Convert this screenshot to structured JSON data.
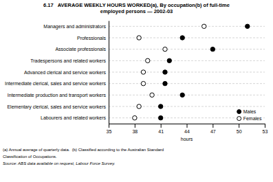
{
  "chart_data": {
    "type": "dot",
    "orientation": "horizontal",
    "title": [
      "6.17   AVERAGE WEEKLY HOURS WORKED(a), By occupation(b) of full-time",
      "employed persons — 2002-03"
    ],
    "categories": [
      "Managers and administrators",
      "Professionals",
      "Associate professionals",
      "Tradespersons and related workers",
      "Advanced clerical and service workers",
      "Intermediate clerical, sales and service workers",
      "Intermediate production and transport workers",
      "Elementary clerical, sales and service workers",
      "Labourers and related workers"
    ],
    "series": [
      {
        "name": "Males",
        "color": "#000000",
        "marker": "circle",
        "values": [
          51.0,
          43.5,
          47.0,
          42.0,
          41.5,
          41.5,
          43.5,
          41.0,
          41.0
        ]
      },
      {
        "name": "Females",
        "color": "#000000",
        "marker": "open-circle",
        "values": [
          46.0,
          38.5,
          41.5,
          39.5,
          39.0,
          39.0,
          40.0,
          38.5,
          38.0
        ]
      }
    ],
    "xlabel": "hours",
    "xlim": [
      35,
      53
    ],
    "xticks": [
      35,
      38,
      41,
      44,
      47,
      50,
      53
    ],
    "grid": true,
    "legend": "lower right",
    "annotations": [
      "(a) Annual average of quarterly data.  (b) Classified according to the Australian Standard",
      "Classification of Occupations.",
      "Source: ABS data available on request, Labour Force Survey."
    ]
  }
}
